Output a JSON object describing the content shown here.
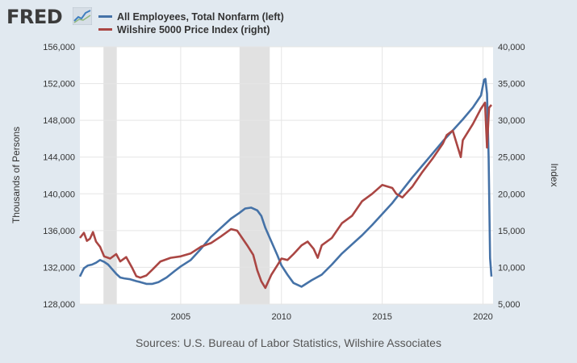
{
  "header": {
    "logo_text": "FRED",
    "logo_icon": "fred-chart-icon"
  },
  "footer": {
    "source": "Sources: U.S. Bureau of Labor Statistics, Wilshire Associates"
  },
  "colors": {
    "page_background": "#e1e9f0",
    "plot_background": "#ffffff",
    "recession_shading": "#e1e1e1",
    "gridline": "#e5e5e5"
  },
  "chart_data": {
    "type": "line",
    "title": "",
    "xlabel": "",
    "ylabel": "Thousands of Persons",
    "ylabel_right": "Index",
    "xlim": [
      2000.0,
      2020.5
    ],
    "ylim": [
      128000,
      156000
    ],
    "ylim_right": [
      5000,
      40000
    ],
    "x_ticks": [
      2005,
      2010,
      2015,
      2020
    ],
    "y_ticks": [
      128000,
      132000,
      136000,
      140000,
      144000,
      148000,
      152000,
      156000
    ],
    "y_ticks_right": [
      5000,
      10000,
      15000,
      20000,
      25000,
      30000,
      35000,
      40000
    ],
    "x_tick_labels": [
      "2005",
      "2010",
      "2015",
      "2020"
    ],
    "y_tick_labels": [
      "128,000",
      "132,000",
      "136,000",
      "140,000",
      "144,000",
      "148,000",
      "152,000",
      "156,000"
    ],
    "y_tick_labels_right": [
      "5,000",
      "10,000",
      "15,000",
      "20,000",
      "25,000",
      "30,000",
      "35,000",
      "40,000"
    ],
    "grid": true,
    "legend_position": "top-left",
    "recessions": [
      [
        2001.17,
        2001.83
      ],
      [
        2007.92,
        2009.42
      ]
    ],
    "series": [
      {
        "name": "All Employees, Total Nonfarm (left)",
        "axis": "left",
        "color": "#4572a7",
        "x": [
          2000.0,
          2000.2,
          2000.4,
          2000.6,
          2000.8,
          2001.0,
          2001.2,
          2001.4,
          2001.6,
          2001.8,
          2002.0,
          2002.2,
          2002.5,
          2002.8,
          2003.0,
          2003.3,
          2003.6,
          2003.9,
          2004.3,
          2004.7,
          2005.0,
          2005.5,
          2006.0,
          2006.5,
          2007.0,
          2007.5,
          2007.9,
          2008.2,
          2008.5,
          2008.8,
          2009.0,
          2009.2,
          2009.5,
          2009.8,
          2010.0,
          2010.3,
          2010.6,
          2011.0,
          2011.5,
          2012.0,
          2012.5,
          2013.0,
          2013.5,
          2014.0,
          2014.5,
          2015.0,
          2015.5,
          2016.0,
          2016.5,
          2017.0,
          2017.5,
          2018.0,
          2018.5,
          2019.0,
          2019.5,
          2019.9,
          2020.0,
          2020.05,
          2020.12,
          2020.2,
          2020.28,
          2020.35,
          2020.42
        ],
        "y": [
          131000,
          131900,
          132200,
          132300,
          132500,
          132800,
          132600,
          132300,
          131800,
          131300,
          130900,
          130800,
          130700,
          130500,
          130400,
          130200,
          130200,
          130400,
          130900,
          131600,
          132100,
          132800,
          134000,
          135300,
          136300,
          137300,
          137900,
          138400,
          138500,
          138200,
          137600,
          136300,
          134800,
          133300,
          132200,
          131200,
          130300,
          129900,
          130600,
          131200,
          132300,
          133500,
          134500,
          135500,
          136600,
          137800,
          139000,
          140400,
          141800,
          143100,
          144400,
          145700,
          146900,
          148100,
          149400,
          150700,
          151800,
          152400,
          152500,
          150900,
          144000,
          133000,
          131000
        ]
      },
      {
        "name": "Wilshire 5000 Price Index (right)",
        "axis": "right",
        "color": "#aa4643",
        "x": [
          2000.0,
          2000.2,
          2000.35,
          2000.5,
          2000.65,
          2000.8,
          2001.0,
          2001.2,
          2001.5,
          2001.8,
          2002.0,
          2002.3,
          2002.6,
          2002.8,
          2003.0,
          2003.3,
          2003.6,
          2004.0,
          2004.5,
          2005.0,
          2005.5,
          2006.0,
          2006.5,
          2007.0,
          2007.5,
          2007.8,
          2008.0,
          2008.3,
          2008.6,
          2008.8,
          2009.0,
          2009.2,
          2009.5,
          2009.8,
          2010.0,
          2010.3,
          2010.6,
          2011.0,
          2011.3,
          2011.6,
          2011.8,
          2012.0,
          2012.5,
          2013.0,
          2013.5,
          2014.0,
          2014.5,
          2015.0,
          2015.5,
          2015.7,
          2016.0,
          2016.5,
          2017.0,
          2017.5,
          2018.0,
          2018.2,
          2018.5,
          2018.9,
          2019.0,
          2019.5,
          2019.9,
          2020.1,
          2020.2,
          2020.3,
          2020.42
        ],
        "y": [
          14000,
          14700,
          13600,
          13900,
          14800,
          13500,
          12800,
          11500,
          11200,
          11800,
          10800,
          11400,
          9900,
          8800,
          8600,
          8900,
          9700,
          10800,
          11300,
          11500,
          11900,
          12800,
          13300,
          14200,
          15200,
          15000,
          14200,
          13000,
          11700,
          9600,
          8100,
          7200,
          9000,
          10300,
          11200,
          11000,
          11800,
          13000,
          13500,
          12500,
          11300,
          13000,
          14000,
          16000,
          17000,
          19000,
          20000,
          21200,
          20800,
          20000,
          19500,
          21000,
          23000,
          24800,
          26800,
          28000,
          28600,
          25000,
          27300,
          29500,
          31600,
          32400,
          26300,
          31700,
          32100
        ]
      }
    ]
  }
}
